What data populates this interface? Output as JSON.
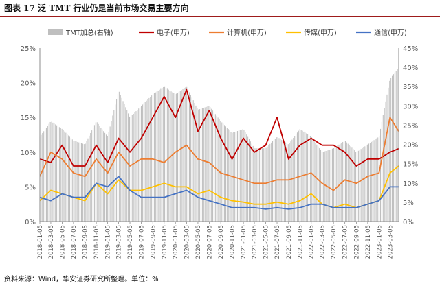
{
  "figure_title": "图表 17  泛 TMT 行业仍是当前市场交易主要方向",
  "source": "资料来源：Wind，华安证券研究所整理。单位：%",
  "colors": {
    "electronics": "#c00000",
    "computer": "#ed7d31",
    "media": "#ffc000",
    "telecom": "#4472c4",
    "tmt_bar": "#bfbfbf",
    "border": "#9e1b1b"
  },
  "chart_data": {
    "type": "line",
    "x_type": "date",
    "x_start": "2018-01-05",
    "x_end": "2023-04-21",
    "x_tick_labels": [
      "2018-01-05",
      "2018-03-05",
      "2018-05-05",
      "2018-07-05",
      "2018-09-05",
      "2018-11-05",
      "2019-01-05",
      "2019-03-05",
      "2019-05-05",
      "2019-07-05",
      "2019-09-05",
      "2019-11-05",
      "2020-01-05",
      "2020-03-05",
      "2020-05-05",
      "2020-07-05",
      "2020-09-05",
      "2020-11-05",
      "2021-01-05",
      "2021-03-05",
      "2021-05-05",
      "2021-07-05",
      "2021-09-05",
      "2021-11-05",
      "2022-01-05",
      "2022-03-05",
      "2022-05-05",
      "2022-07-05",
      "2022-09-05",
      "2022-11-05",
      "2023-01-05",
      "2023-03-05"
    ],
    "y_left": {
      "ticks": [
        "0%",
        "5%",
        "10%",
        "15%",
        "20%",
        "25%"
      ],
      "min": 0,
      "max": 25
    },
    "y_right": {
      "ticks": [
        "0%",
        "5%",
        "10%",
        "15%",
        "20%",
        "25%",
        "30%",
        "35%",
        "40%",
        "45%"
      ],
      "min": 0,
      "max": 45
    },
    "grid": false,
    "legend_position": "top",
    "series": [
      {
        "name": "TMT加总(右轴)",
        "type": "bar",
        "axis": "right",
        "color": "#bfbfbf",
        "points": [
          [
            "2018-01-05",
            22
          ],
          [
            "2018-03-05",
            26
          ],
          [
            "2018-05-05",
            24
          ],
          [
            "2018-07-05",
            21
          ],
          [
            "2018-09-05",
            20
          ],
          [
            "2018-11-05",
            26
          ],
          [
            "2019-01-05",
            22
          ],
          [
            "2019-03-05",
            34
          ],
          [
            "2019-05-05",
            27
          ],
          [
            "2019-07-05",
            30
          ],
          [
            "2019-09-05",
            33
          ],
          [
            "2019-11-05",
            35
          ],
          [
            "2020-01-05",
            33
          ],
          [
            "2020-03-05",
            35
          ],
          [
            "2020-05-05",
            29
          ],
          [
            "2020-07-05",
            30
          ],
          [
            "2020-09-05",
            26
          ],
          [
            "2020-11-05",
            23
          ],
          [
            "2021-01-05",
            24
          ],
          [
            "2021-03-05",
            19
          ],
          [
            "2021-05-05",
            19
          ],
          [
            "2021-07-05",
            22
          ],
          [
            "2021-09-05",
            20
          ],
          [
            "2021-11-05",
            24
          ],
          [
            "2022-01-05",
            22
          ],
          [
            "2022-03-05",
            18
          ],
          [
            "2022-05-05",
            19
          ],
          [
            "2022-07-05",
            21
          ],
          [
            "2022-09-05",
            18
          ],
          [
            "2022-11-05",
            20
          ],
          [
            "2023-01-05",
            22
          ],
          [
            "2023-03-05",
            37
          ],
          [
            "2023-04-21",
            40
          ]
        ]
      },
      {
        "name": "电子(申万)",
        "type": "line",
        "axis": "left",
        "color": "#c00000",
        "points": [
          [
            "2018-01-05",
            9
          ],
          [
            "2018-03-05",
            8.5
          ],
          [
            "2018-05-05",
            11
          ],
          [
            "2018-07-05",
            8
          ],
          [
            "2018-09-05",
            8
          ],
          [
            "2018-11-05",
            11
          ],
          [
            "2019-01-05",
            8.5
          ],
          [
            "2019-03-05",
            12
          ],
          [
            "2019-05-05",
            10
          ],
          [
            "2019-07-05",
            12
          ],
          [
            "2019-09-05",
            15
          ],
          [
            "2019-11-05",
            18
          ],
          [
            "2020-01-05",
            15
          ],
          [
            "2020-03-05",
            19
          ],
          [
            "2020-05-05",
            13
          ],
          [
            "2020-07-05",
            16
          ],
          [
            "2020-09-05",
            12
          ],
          [
            "2020-11-05",
            9
          ],
          [
            "2021-01-05",
            12
          ],
          [
            "2021-03-05",
            10
          ],
          [
            "2021-05-05",
            11
          ],
          [
            "2021-07-05",
            15
          ],
          [
            "2021-09-05",
            9
          ],
          [
            "2021-11-05",
            11
          ],
          [
            "2022-01-05",
            12
          ],
          [
            "2022-03-05",
            11
          ],
          [
            "2022-05-05",
            11
          ],
          [
            "2022-07-05",
            10
          ],
          [
            "2022-09-05",
            8
          ],
          [
            "2022-11-05",
            9
          ],
          [
            "2023-01-05",
            9
          ],
          [
            "2023-03-05",
            10
          ],
          [
            "2023-04-21",
            10.5
          ]
        ]
      },
      {
        "name": "计算机(申万)",
        "type": "line",
        "axis": "left",
        "color": "#ed7d31",
        "points": [
          [
            "2018-01-05",
            6.5
          ],
          [
            "2018-03-05",
            10
          ],
          [
            "2018-05-05",
            9
          ],
          [
            "2018-07-05",
            7
          ],
          [
            "2018-09-05",
            6.5
          ],
          [
            "2018-11-05",
            9
          ],
          [
            "2019-01-05",
            7
          ],
          [
            "2019-03-05",
            10
          ],
          [
            "2019-05-05",
            8
          ],
          [
            "2019-07-05",
            9
          ],
          [
            "2019-09-05",
            9
          ],
          [
            "2019-11-05",
            8.5
          ],
          [
            "2020-01-05",
            10
          ],
          [
            "2020-03-05",
            11
          ],
          [
            "2020-05-05",
            9
          ],
          [
            "2020-07-05",
            8.5
          ],
          [
            "2020-09-05",
            7
          ],
          [
            "2020-11-05",
            6.5
          ],
          [
            "2021-01-05",
            6
          ],
          [
            "2021-03-05",
            5.5
          ],
          [
            "2021-05-05",
            5.5
          ],
          [
            "2021-07-05",
            6
          ],
          [
            "2021-09-05",
            6
          ],
          [
            "2021-11-05",
            6.5
          ],
          [
            "2022-01-05",
            7
          ],
          [
            "2022-03-05",
            5.5
          ],
          [
            "2022-05-05",
            4.5
          ],
          [
            "2022-07-05",
            6
          ],
          [
            "2022-09-05",
            5.5
          ],
          [
            "2022-11-05",
            6.5
          ],
          [
            "2023-01-05",
            7
          ],
          [
            "2023-03-05",
            15
          ],
          [
            "2023-04-21",
            13
          ]
        ]
      },
      {
        "name": "传媒(申万)",
        "type": "line",
        "axis": "left",
        "color": "#ffc000",
        "points": [
          [
            "2018-01-05",
            3
          ],
          [
            "2018-03-05",
            4.5
          ],
          [
            "2018-05-05",
            4
          ],
          [
            "2018-07-05",
            3.5
          ],
          [
            "2018-09-05",
            3
          ],
          [
            "2018-11-05",
            5.5
          ],
          [
            "2019-01-05",
            4
          ],
          [
            "2019-03-05",
            6
          ],
          [
            "2019-05-05",
            4.5
          ],
          [
            "2019-07-05",
            4.5
          ],
          [
            "2019-09-05",
            5
          ],
          [
            "2019-11-05",
            5.5
          ],
          [
            "2020-01-05",
            5
          ],
          [
            "2020-03-05",
            5
          ],
          [
            "2020-05-05",
            4
          ],
          [
            "2020-07-05",
            4.5
          ],
          [
            "2020-09-05",
            3.5
          ],
          [
            "2020-11-05",
            3
          ],
          [
            "2021-01-05",
            2.8
          ],
          [
            "2021-03-05",
            2.5
          ],
          [
            "2021-05-05",
            2.5
          ],
          [
            "2021-07-05",
            2.8
          ],
          [
            "2021-09-05",
            2.5
          ],
          [
            "2021-11-05",
            3
          ],
          [
            "2022-01-05",
            4
          ],
          [
            "2022-03-05",
            2.5
          ],
          [
            "2022-05-05",
            2
          ],
          [
            "2022-07-05",
            2.5
          ],
          [
            "2022-09-05",
            2
          ],
          [
            "2022-11-05",
            2.5
          ],
          [
            "2023-01-05",
            3
          ],
          [
            "2023-03-05",
            7
          ],
          [
            "2023-04-21",
            8
          ]
        ]
      },
      {
        "name": "通信(申万)",
        "type": "line",
        "axis": "left",
        "color": "#4472c4",
        "points": [
          [
            "2018-01-05",
            3.5
          ],
          [
            "2018-03-05",
            3
          ],
          [
            "2018-05-05",
            4
          ],
          [
            "2018-07-05",
            3.5
          ],
          [
            "2018-09-05",
            3.5
          ],
          [
            "2018-11-05",
            5.5
          ],
          [
            "2019-01-05",
            5
          ],
          [
            "2019-03-05",
            6.5
          ],
          [
            "2019-05-05",
            4.5
          ],
          [
            "2019-07-05",
            3.5
          ],
          [
            "2019-09-05",
            3.5
          ],
          [
            "2019-11-05",
            3.5
          ],
          [
            "2020-01-05",
            4
          ],
          [
            "2020-03-05",
            4.5
          ],
          [
            "2020-05-05",
            3.5
          ],
          [
            "2020-07-05",
            3
          ],
          [
            "2020-09-05",
            2.5
          ],
          [
            "2020-11-05",
            2
          ],
          [
            "2021-01-05",
            2
          ],
          [
            "2021-03-05",
            2
          ],
          [
            "2021-05-05",
            1.8
          ],
          [
            "2021-07-05",
            2
          ],
          [
            "2021-09-05",
            1.8
          ],
          [
            "2021-11-05",
            2
          ],
          [
            "2022-01-05",
            2.5
          ],
          [
            "2022-03-05",
            2.5
          ],
          [
            "2022-05-05",
            2
          ],
          [
            "2022-07-05",
            2
          ],
          [
            "2022-09-05",
            2
          ],
          [
            "2022-11-05",
            2.5
          ],
          [
            "2023-01-05",
            3
          ],
          [
            "2023-03-05",
            5
          ],
          [
            "2023-04-21",
            5
          ]
        ]
      }
    ]
  }
}
